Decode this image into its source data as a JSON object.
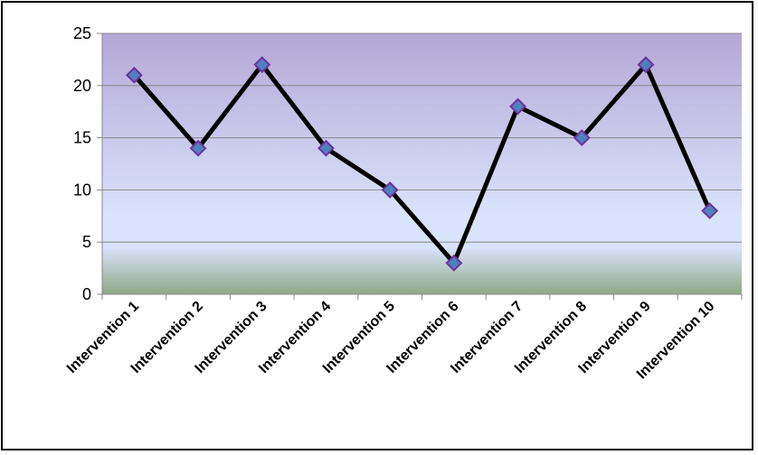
{
  "chart_data": {
    "type": "line",
    "title": "",
    "xlabel": "",
    "ylabel": "",
    "categories": [
      "Intervention 1",
      "Intervention 2",
      "Intervention 3",
      "Intervention 4",
      "Intervention 5",
      "Intervention 6",
      "Intervention 7",
      "Intervention 8",
      "Intervention 9",
      "Intervention 10"
    ],
    "series": [
      {
        "values": [
          21,
          14,
          22,
          14,
          10,
          3,
          18,
          15,
          22,
          8
        ]
      }
    ],
    "ylim": [
      0,
      25
    ],
    "yticks": [
      "0",
      "5",
      "10",
      "15",
      "20",
      "25"
    ],
    "grid": true,
    "legend": "none",
    "colors": {
      "line": "#000000",
      "marker_fill": "#4f81bd",
      "marker_stroke": "#7030a0",
      "plot_top": "#b4a7d6",
      "plot_mid": "#dae3fc",
      "plot_bottom": "#8fa886",
      "gridline": "#888888"
    }
  }
}
